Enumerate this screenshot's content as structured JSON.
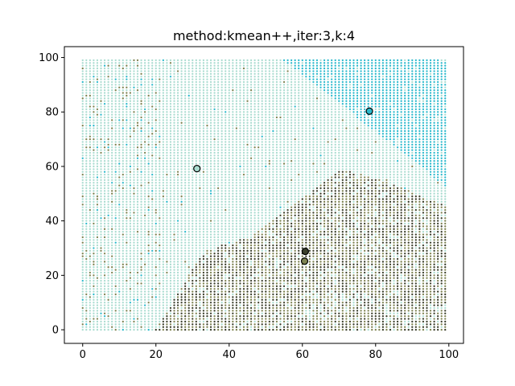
{
  "chart_data": {
    "type": "scatter",
    "title": "method:kmean++,iter:3,k:4",
    "xlabel": "",
    "ylabel": "",
    "xlim": [
      -5,
      104
    ],
    "ylim": [
      -5,
      104
    ],
    "xticks": [
      0,
      20,
      40,
      60,
      80,
      100
    ],
    "yticks": [
      0,
      20,
      40,
      60,
      80,
      100
    ],
    "xtick_labels": [
      "0",
      "20",
      "40",
      "60",
      "80",
      "100"
    ],
    "ytick_labels": [
      "0",
      "20",
      "40",
      "60",
      "80",
      "100"
    ],
    "grid": false,
    "point_grid": {
      "x_range": [
        0,
        99
      ],
      "y_range": [
        0,
        99
      ],
      "step": 1
    },
    "cluster_colors": {
      "light_teal": "#aadcd0",
      "cyan": "#2ab9cc",
      "dark_olive": "#3b3f2c",
      "olive": "#7e8352"
    },
    "centroids": [
      {
        "x": 31.2,
        "y": 59.2,
        "color": "#aadcd0"
      },
      {
        "x": 78.3,
        "y": 80.3,
        "color": "#2ab9cc"
      },
      {
        "x": 60.8,
        "y": 28.8,
        "color": "#3b3f2c"
      },
      {
        "x": 60.6,
        "y": 25.2,
        "color": "#7e8352"
      }
    ]
  }
}
